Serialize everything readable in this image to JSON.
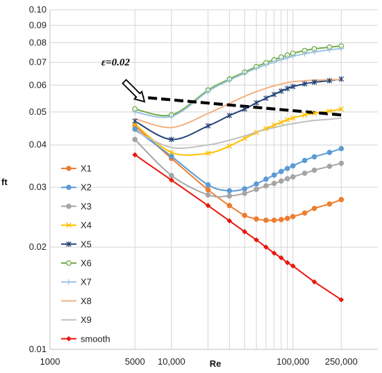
{
  "chart_data": {
    "type": "line",
    "title": "",
    "xlabel": "Re",
    "ylabel": "ft",
    "x_scale": "log",
    "y_scale": "log",
    "xlim": [
      1000,
      500000
    ],
    "ylim": [
      0.01,
      0.1
    ],
    "x_ticks": [
      {
        "value": 1000,
        "label": "1000"
      },
      {
        "value": 5000,
        "label": "5000"
      },
      {
        "value": 10000,
        "label": "10,000"
      },
      {
        "value": 100000,
        "label": "100,000"
      },
      {
        "value": 250000,
        "label": "250,000"
      }
    ],
    "y_ticks": [
      {
        "value": 0.01,
        "label": "0.01"
      },
      {
        "value": 0.02,
        "label": "0.02"
      },
      {
        "value": 0.03,
        "label": "0.03"
      },
      {
        "value": 0.04,
        "label": "0.04"
      },
      {
        "value": 0.05,
        "label": "0.05"
      },
      {
        "value": 0.06,
        "label": "0.06"
      },
      {
        "value": 0.07,
        "label": "0.07"
      },
      {
        "value": 0.08,
        "label": "0.08"
      },
      {
        "value": 0.09,
        "label": "0.09"
      },
      {
        "value": 0.1,
        "label": "0.10"
      }
    ],
    "x_gridlines": [
      5000,
      10000,
      20000,
      30000,
      40000,
      50000,
      60000,
      70000,
      80000,
      90000,
      100000,
      250000
    ],
    "legend_position": "bottom-left",
    "series": [
      {
        "name": "X1",
        "color": "#ED7D31",
        "marker": "circle",
        "x": [
          5000,
          10000,
          20000,
          30000,
          40000,
          50000,
          60000,
          70000,
          80000,
          90000,
          100000,
          125000,
          150000,
          200000,
          250000
        ],
        "y": [
          0.0455,
          0.0365,
          0.0295,
          0.0265,
          0.0248,
          0.0242,
          0.024,
          0.024,
          0.0241,
          0.0243,
          0.0246,
          0.0252,
          0.026,
          0.0268,
          0.0276
        ]
      },
      {
        "name": "X2",
        "color": "#5B9BD5",
        "marker": "circle",
        "x": [
          5000,
          10000,
          20000,
          30000,
          40000,
          50000,
          60000,
          70000,
          80000,
          90000,
          100000,
          125000,
          150000,
          200000,
          250000
        ],
        "y": [
          0.0445,
          0.037,
          0.0305,
          0.0293,
          0.0297,
          0.0307,
          0.0317,
          0.0326,
          0.0334,
          0.0341,
          0.0347,
          0.036,
          0.0369,
          0.038,
          0.039
        ]
      },
      {
        "name": "X3",
        "color": "#A5A5A5",
        "marker": "circle",
        "x": [
          5000,
          10000,
          20000,
          30000,
          40000,
          50000,
          60000,
          70000,
          80000,
          90000,
          100000,
          125000,
          150000,
          200000,
          250000
        ],
        "y": [
          0.0415,
          0.0325,
          0.0285,
          0.0283,
          0.0288,
          0.0296,
          0.0303,
          0.0308,
          0.0313,
          0.0318,
          0.0322,
          0.033,
          0.0337,
          0.0346,
          0.0353
        ]
      },
      {
        "name": "X4",
        "color": "#FFC000",
        "marker": "x",
        "x": [
          5000,
          10000,
          20000,
          30000,
          40000,
          50000,
          60000,
          70000,
          80000,
          90000,
          100000,
          125000,
          150000,
          200000,
          250000
        ],
        "y": [
          0.046,
          0.038,
          0.0378,
          0.0397,
          0.0418,
          0.0435,
          0.0447,
          0.0457,
          0.0466,
          0.0474,
          0.048,
          0.049,
          0.0496,
          0.0503,
          0.051
        ]
      },
      {
        "name": "X5",
        "color": "#264478",
        "marker": "star",
        "x": [
          5000,
          10000,
          20000,
          30000,
          40000,
          50000,
          60000,
          70000,
          80000,
          90000,
          100000,
          125000,
          150000,
          200000,
          250000
        ],
        "y": [
          0.047,
          0.0415,
          0.0455,
          0.0488,
          0.051,
          0.0532,
          0.0549,
          0.0563,
          0.0576,
          0.0586,
          0.0594,
          0.0605,
          0.0612,
          0.0618,
          0.0625
        ]
      },
      {
        "name": "X6",
        "color": "#70AD47",
        "marker": "circle-open",
        "x": [
          5000,
          10000,
          20000,
          30000,
          40000,
          50000,
          60000,
          70000,
          80000,
          90000,
          100000,
          125000,
          150000,
          200000,
          250000
        ],
        "y": [
          0.051,
          0.049,
          0.058,
          0.0625,
          0.0655,
          0.068,
          0.0698,
          0.0712,
          0.0725,
          0.0735,
          0.0744,
          0.0758,
          0.0767,
          0.0776,
          0.0782
        ]
      },
      {
        "name": "X7",
        "color": "#9DC3E6",
        "marker": "plus",
        "x": [
          5000,
          10000,
          20000,
          30000,
          40000,
          50000,
          60000,
          70000,
          80000,
          90000,
          100000,
          125000,
          150000,
          200000,
          250000
        ],
        "y": [
          0.05,
          0.0485,
          0.0575,
          0.062,
          0.065,
          0.0672,
          0.0688,
          0.0702,
          0.0713,
          0.0722,
          0.073,
          0.0742,
          0.0751,
          0.0762,
          0.0768
        ]
      },
      {
        "name": "X8",
        "color": "#F4B183",
        "marker": "none",
        "x": [
          5000,
          10000,
          20000,
          30000,
          40000,
          50000,
          60000,
          70000,
          80000,
          90000,
          100000,
          125000,
          150000,
          200000,
          250000
        ],
        "y": [
          0.0478,
          0.045,
          0.0495,
          0.053,
          0.0556,
          0.0574,
          0.0587,
          0.0597,
          0.0604,
          0.061,
          0.0614,
          0.0618,
          0.062,
          0.0622,
          0.0623
        ]
      },
      {
        "name": "X9",
        "color": "#C0C0C0",
        "marker": "none",
        "x": [
          5000,
          10000,
          20000,
          30000,
          40000,
          50000,
          60000,
          70000,
          80000,
          90000,
          100000,
          125000,
          150000,
          200000,
          250000
        ],
        "y": [
          0.044,
          0.0393,
          0.04,
          0.0413,
          0.0425,
          0.0436,
          0.0444,
          0.045,
          0.0455,
          0.0459,
          0.0462,
          0.0468,
          0.0472,
          0.0476,
          0.048
        ]
      },
      {
        "name": "smooth",
        "color": "#E8160C",
        "marker": "diamond",
        "x": [
          5000,
          10000,
          20000,
          30000,
          40000,
          50000,
          60000,
          70000,
          80000,
          90000,
          100000,
          150000,
          250000
        ],
        "y": [
          0.0374,
          0.0315,
          0.0265,
          0.0239,
          0.0222,
          0.021,
          0.02,
          0.0192,
          0.0186,
          0.018,
          0.0176,
          0.0158,
          0.014
        ]
      }
    ],
    "reference_line": {
      "x": [
        5000,
        250000
      ],
      "y": [
        0.0555,
        0.049
      ],
      "color": "#000000",
      "style": "dashed"
    },
    "annotation": {
      "text": "ε=0.02",
      "points_to_x": 6000,
      "points_to_y": 0.0536
    }
  }
}
